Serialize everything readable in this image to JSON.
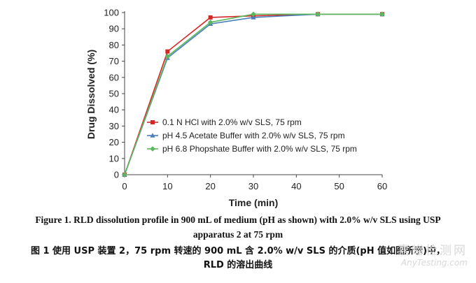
{
  "chart_data": {
    "type": "line",
    "title": "",
    "xlabel": "Time (min)",
    "ylabel": "Drug Dissolved (%)",
    "xlim": [
      0,
      60
    ],
    "ylim": [
      0,
      100
    ],
    "x_ticks": [
      0,
      10,
      20,
      30,
      40,
      50,
      60
    ],
    "y_ticks": [
      0,
      10,
      20,
      30,
      40,
      50,
      60,
      70,
      80,
      90,
      100
    ],
    "grid": false,
    "legend_position": "center-right",
    "series": [
      {
        "name": "0.1 N HCl with 2.0% w/v SLS, 75 rpm",
        "color": "#d62728",
        "marker": "square",
        "x": [
          0,
          10,
          20,
          30,
          45,
          60
        ],
        "values": [
          0,
          76,
          97,
          98,
          99,
          99
        ]
      },
      {
        "name": "pH 4.5 Acetate Buffer with 2.0% w/v SLS, 75 rpm",
        "color": "#4a7ebb",
        "marker": "triangle",
        "x": [
          0,
          10,
          20,
          30,
          45,
          60
        ],
        "values": [
          0,
          72,
          93,
          97,
          99,
          99
        ]
      },
      {
        "name": "pH 6.8 Phopshate Buffer with 2.0% w/v SLS, 75 rpm",
        "color": "#5cb85c",
        "marker": "diamond",
        "x": [
          0,
          10,
          20,
          30,
          45,
          60
        ],
        "values": [
          0,
          73,
          94,
          99,
          99,
          99
        ]
      }
    ]
  },
  "caption": {
    "en_line1": "Figure 1. RLD dissolution profile in 900 mL of medium (pH as shown) with 2.0% w/v SLS using USP",
    "en_line2": "apparatus 2 at 75 rpm",
    "zh_line1": "图 1  使用 USP 装置 2，75 rpm 转速的 900 mL 含 2.0% w/v SLS 的介质(pH 值如图所示)中，",
    "zh_line2": "RLD 的溶出曲线"
  },
  "watermark": {
    "zh": "嘉峪检测网",
    "en": "AnyTesting.com"
  }
}
